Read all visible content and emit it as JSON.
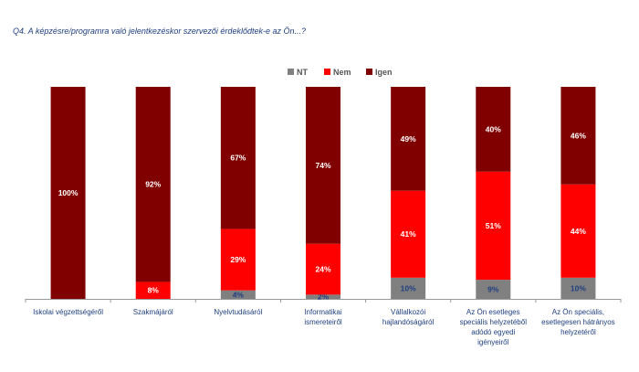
{
  "chart_data": {
    "type": "bar",
    "stacked": true,
    "title": "Q4. A képzésre/programra való jelentkezéskor  szervezői érdeklődtek-e az Ön...?",
    "categories": [
      "Iskolai végzettségéről",
      "Szakmájáról",
      "Nyelvtudásáról",
      "Informatikai ismereteiről",
      "Vállalkozói hajlandóságáról",
      "Az Ön esetleges speciális helyzetéből adódó egyedi igényeiről",
      "Az Ön speciális, esetlegesen hátrányos helyzetéről"
    ],
    "series": [
      {
        "name": "NT",
        "color": "#808080",
        "values": [
          0,
          0,
          4,
          2,
          10,
          9,
          10
        ],
        "labels": [
          "",
          "",
          "4%",
          "2%",
          "10%",
          "9%",
          "10%"
        ]
      },
      {
        "name": "Nem",
        "color": "#ff0000",
        "values": [
          0,
          8,
          29,
          24,
          41,
          51,
          44
        ],
        "labels": [
          "",
          "8%",
          "29%",
          "24%",
          "41%",
          "51%",
          "44%"
        ]
      },
      {
        "name": "Igen",
        "color": "#800000",
        "values": [
          100,
          92,
          67,
          74,
          49,
          40,
          46
        ],
        "labels": [
          "100%",
          "92%",
          "67%",
          "74%",
          "49%",
          "40%",
          "46%"
        ]
      }
    ],
    "ylim": [
      0,
      100
    ],
    "legend_position": "top-center",
    "grid": false
  }
}
